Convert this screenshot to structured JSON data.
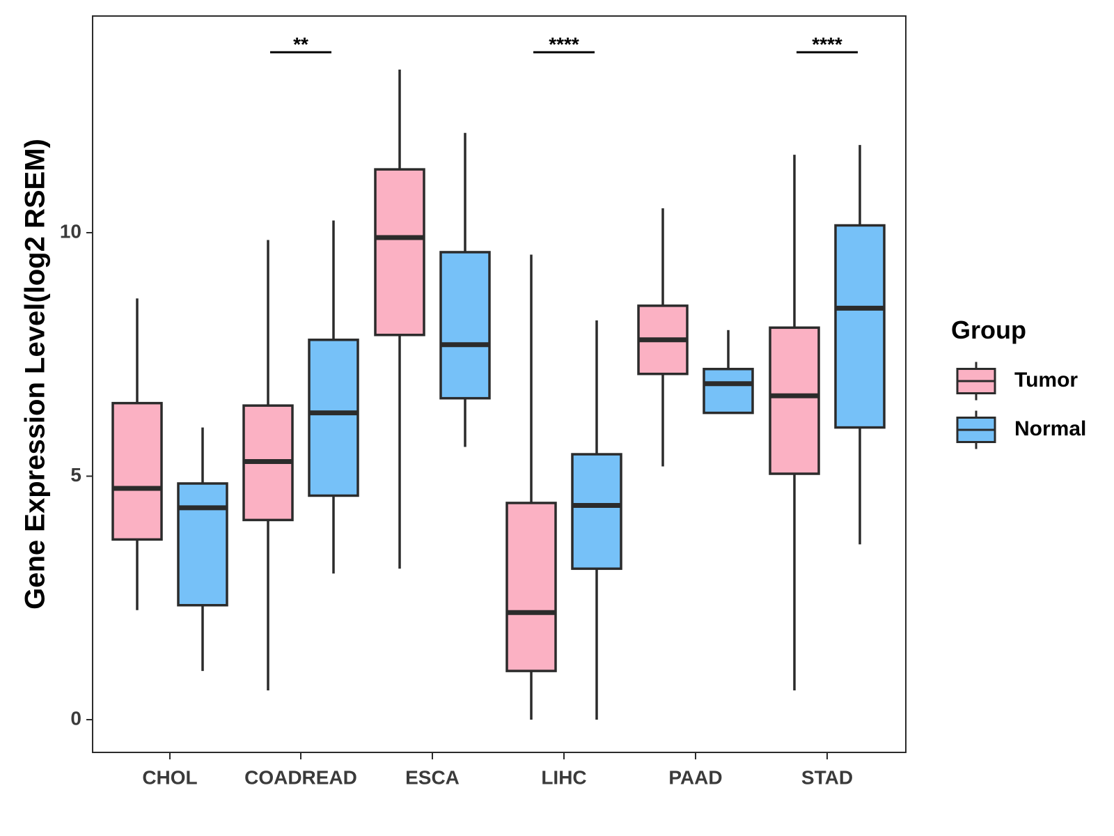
{
  "chart_data": {
    "type": "boxplot",
    "title": "",
    "xlabel": "",
    "ylabel": "Gene Expression Level(log2 RSEM)",
    "ylim": [
      -0.7,
      14.5
    ],
    "yticks": [
      0,
      5,
      10
    ],
    "categories": [
      "CHOL",
      "COADREAD",
      "ESCA",
      "LIHC",
      "PAAD",
      "STAD"
    ],
    "legend": {
      "title": "Group",
      "position": "right"
    },
    "colors": {
      "Tumor": "#fbb1c3",
      "Normal": "#76c1f8",
      "stroke": "#2b2b2b"
    },
    "series": [
      {
        "name": "Tumor",
        "boxes": [
          {
            "min": 2.25,
            "q1": 3.7,
            "median": 4.75,
            "q3": 6.5,
            "max": 8.65
          },
          {
            "min": 0.6,
            "q1": 4.1,
            "median": 5.3,
            "q3": 6.45,
            "max": 9.85
          },
          {
            "min": 3.1,
            "q1": 7.9,
            "median": 9.9,
            "q3": 11.3,
            "max": 13.35
          },
          {
            "min": 0.0,
            "q1": 1.0,
            "median": 2.2,
            "q3": 4.45,
            "max": 9.55
          },
          {
            "min": 5.2,
            "q1": 7.1,
            "median": 7.8,
            "q3": 8.5,
            "max": 10.5
          },
          {
            "min": 0.6,
            "q1": 5.05,
            "median": 6.65,
            "q3": 8.05,
            "max": 11.6
          }
        ]
      },
      {
        "name": "Normal",
        "boxes": [
          {
            "min": 1.0,
            "q1": 2.35,
            "median": 4.35,
            "q3": 4.85,
            "max": 6.0
          },
          {
            "min": 3.0,
            "q1": 4.6,
            "median": 6.3,
            "q3": 7.8,
            "max": 10.25
          },
          {
            "min": 5.6,
            "q1": 6.6,
            "median": 7.7,
            "q3": 9.6,
            "max": 12.05
          },
          {
            "min": 0.0,
            "q1": 3.1,
            "median": 4.4,
            "q3": 5.45,
            "max": 8.2
          },
          {
            "min": 6.3,
            "q1": 6.3,
            "median": 6.9,
            "q3": 7.2,
            "max": 8.0
          },
          {
            "min": 3.6,
            "q1": 6.0,
            "median": 8.45,
            "q3": 10.15,
            "max": 11.8
          }
        ]
      }
    ],
    "annotations": [
      {
        "category": "COADREAD",
        "label": "**"
      },
      {
        "category": "LIHC",
        "label": "****"
      },
      {
        "category": "STAD",
        "label": "****"
      }
    ]
  }
}
